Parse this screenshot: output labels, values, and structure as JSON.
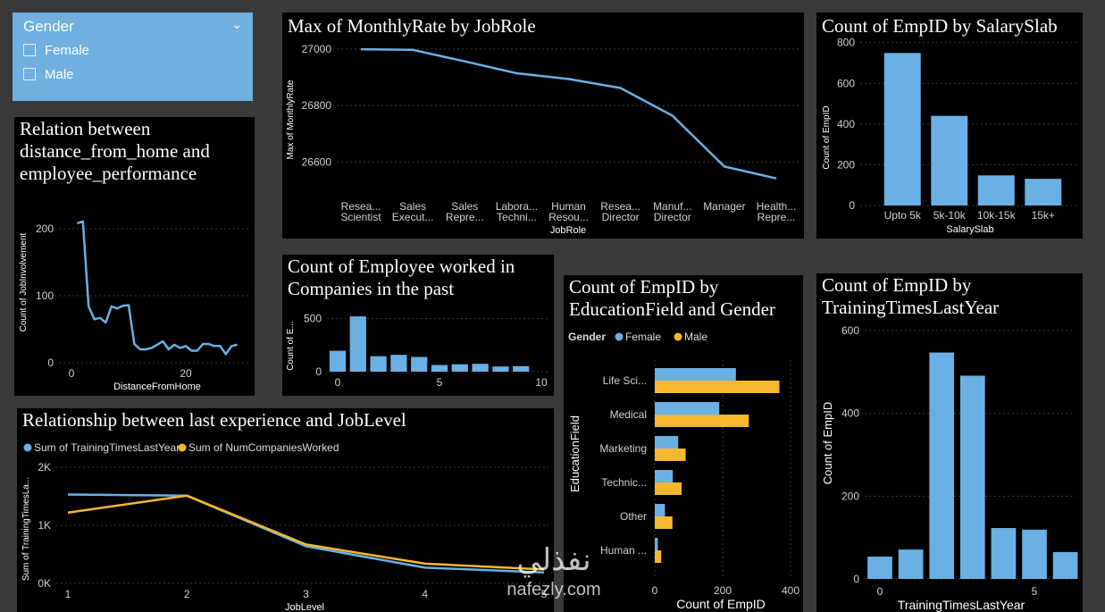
{
  "slicer": {
    "title": "Gender",
    "options": [
      "Female",
      "Male"
    ]
  },
  "watermark": {
    "arabic": "نفذلي",
    "latin": "nafezly.com"
  },
  "colors": {
    "blue": "#6ab0e4",
    "orange": "#f5b82e",
    "grid": "#3a3a3a",
    "axis_text": "#d0d0d0"
  },
  "panels": {
    "monthlyrate": {
      "title": "Max of MonthlyRate by JobRole"
    },
    "salaryslab": {
      "title": "Count of EmpID by SalarySlab"
    },
    "distance": {
      "title_lines": [
        "Relation between",
        "distance_from_home and",
        "employee_performance"
      ]
    },
    "companies": {
      "title_lines": [
        "Count of Employee worked in",
        "Companies in the past"
      ]
    },
    "education": {
      "title_lines": [
        "Count of EmpID by",
        "EducationField and Gender"
      ]
    },
    "training": {
      "title_lines": [
        "Count of EmpID by",
        "TrainingTimesLastYear"
      ]
    },
    "joblevel": {
      "title": "Relationship between last experience and JobLevel"
    }
  },
  "chart_data": [
    {
      "id": "monthlyrate",
      "type": "line",
      "title": "Max of MonthlyRate by JobRole",
      "xlabel": "JobRole",
      "ylabel": "Max of MonthlyRate",
      "categories": [
        [
          "Resea...",
          "Scientist"
        ],
        [
          "Sales",
          "Execut..."
        ],
        [
          "Sales",
          "Repre..."
        ],
        [
          "Labora...",
          "Techni..."
        ],
        [
          "Human",
          "Resou..."
        ],
        [
          "Resea...",
          "Director"
        ],
        [
          "Manuf...",
          "Director"
        ],
        [
          "Manager"
        ],
        [
          "Health...",
          "Repre..."
        ]
      ],
      "values": [
        26999,
        26997,
        26956,
        26914,
        26894,
        26862,
        26764,
        26584,
        26542
      ],
      "ylim": [
        26500,
        27050
      ],
      "yticks": [
        26600,
        26800,
        27000
      ]
    },
    {
      "id": "salaryslab",
      "type": "bar",
      "title": "Count of EmpID by SalarySlab",
      "xlabel": "SalarySlab",
      "ylabel": "Count of EmpID",
      "categories": [
        "Upto 5k",
        "5k-10k",
        "10k-15k",
        "15k+"
      ],
      "values": [
        749,
        440,
        148,
        131
      ],
      "ylim": [
        0,
        860
      ],
      "yticks": [
        0,
        200,
        400,
        600,
        800
      ]
    },
    {
      "id": "distance",
      "type": "line",
      "xlabel": "DistanceFromHome",
      "ylabel": "Count of JobInvolvement",
      "x": [
        1,
        2,
        3,
        4,
        5,
        6,
        7,
        8,
        9,
        10,
        11,
        12,
        13,
        14,
        15,
        16,
        17,
        18,
        19,
        20,
        21,
        22,
        23,
        24,
        25,
        26,
        27,
        28,
        29
      ],
      "values": [
        208,
        211,
        84,
        65,
        67,
        60,
        84,
        81,
        85,
        86,
        28,
        20,
        20,
        22,
        27,
        32,
        20,
        27,
        22,
        25,
        18,
        18,
        28,
        28,
        25,
        25,
        13,
        25,
        27
      ],
      "xlim": [
        -1,
        29.5
      ],
      "ylim": [
        -5,
        245
      ],
      "xticks": [
        0,
        20
      ],
      "yticks": [
        0,
        100,
        200
      ]
    },
    {
      "id": "companies",
      "type": "bar",
      "ylabel": "Count of E...",
      "x": [
        0,
        1,
        2,
        3,
        4,
        5,
        6,
        7,
        8,
        9
      ],
      "values": [
        197,
        521,
        146,
        159,
        139,
        63,
        70,
        74,
        49,
        52
      ],
      "xlim": [
        -0.6,
        9.6
      ],
      "ylim": [
        0,
        640
      ],
      "xticks": [
        0,
        5,
        10
      ],
      "yticks": [
        0,
        500
      ]
    },
    {
      "id": "education",
      "type": "bar",
      "orientation": "horizontal",
      "legend_title": "Gender",
      "legend_position": "top-left",
      "xlabel": "Count of EmpID",
      "ylabel": "EducationField",
      "categories": [
        "Life Sci...",
        "Medical",
        "Marketing",
        "Technic...",
        "Other",
        "Human ..."
      ],
      "series": [
        {
          "name": "Female",
          "values": [
            239,
            190,
            69,
            53,
            30,
            9
          ]
        },
        {
          "name": "Male",
          "values": [
            367,
            277,
            91,
            79,
            52,
            19
          ]
        }
      ],
      "xlim": [
        0,
        400
      ],
      "xticks": [
        0,
        200,
        400
      ]
    },
    {
      "id": "training",
      "type": "bar",
      "xlabel": "TrainingTimesLastYear",
      "ylabel": "Count of EmpID",
      "x": [
        0,
        1,
        2,
        3,
        4,
        5,
        6
      ],
      "values": [
        54,
        71,
        547,
        491,
        123,
        119,
        65
      ],
      "xlim": [
        -0.6,
        6.6
      ],
      "ylim": [
        0,
        640
      ],
      "xticks": [
        0,
        5
      ],
      "yticks": [
        0,
        200,
        400,
        600
      ]
    },
    {
      "id": "joblevel",
      "type": "line",
      "title": "Relationship between last experience and JobLevel",
      "xlabel": "JobLevel",
      "ylabel": "Sum of TrainingTimesLa...",
      "legend_position": "top-left",
      "x": [
        1,
        2,
        3,
        4,
        5
      ],
      "series": [
        {
          "name": "Sum of TrainingTimesLastYear",
          "values": [
            1530,
            1510,
            640,
            270,
            190
          ]
        },
        {
          "name": "Sum of NumCompaniesWorked",
          "values": [
            1220,
            1510,
            670,
            340,
            240
          ]
        }
      ],
      "xlim": [
        1,
        5
      ],
      "ylim": [
        0,
        2000
      ],
      "xticks": [
        1,
        2,
        3,
        4,
        5
      ],
      "yticks": [
        0,
        1000,
        2000
      ],
      "ytick_labels": [
        "0K",
        "1K",
        "2K"
      ]
    }
  ]
}
